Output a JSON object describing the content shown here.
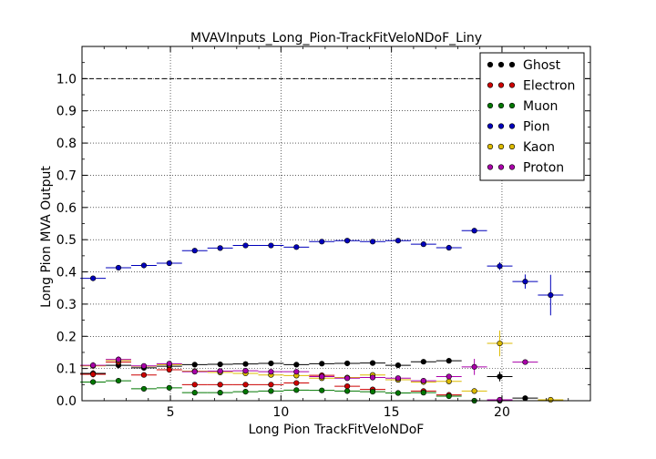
{
  "chart_data": {
    "type": "scatter",
    "title": "MVAVInputs_Long_Pion-TrackFitVeloNDoF_Liny",
    "xlabel": "Long Pion TrackFitVeloNDoF",
    "ylabel": "Long Pion MVA Output",
    "xlim": [
      1,
      24
    ],
    "ylim": [
      0,
      1.1
    ],
    "xticks": [
      5,
      10,
      15,
      20
    ],
    "xtick_labels": [
      "5",
      "10",
      "15",
      "20"
    ],
    "yticks": [
      0.0,
      0.1,
      0.2,
      0.3,
      0.4,
      0.5,
      0.6,
      0.7,
      0.8,
      0.9,
      1.0
    ],
    "ytick_labels": [
      "0.0",
      "0.1",
      "0.2",
      "0.3",
      "0.4",
      "0.5",
      "0.6",
      "0.7",
      "0.8",
      "0.9",
      "1.0"
    ],
    "grid": true,
    "reference_line_y": 1.0,
    "legend_position": "top-right",
    "bin_half_width": 0.575,
    "series": [
      {
        "name": "Ghost",
        "color": "#000000",
        "points": [
          {
            "x": 1.5,
            "y": 0.085,
            "err": 0.01
          },
          {
            "x": 2.65,
            "y": 0.11,
            "err": 0.01
          },
          {
            "x": 3.8,
            "y": 0.102,
            "err": 0.008
          },
          {
            "x": 4.95,
            "y": 0.107,
            "err": 0.006
          },
          {
            "x": 6.1,
            "y": 0.112,
            "err": 0.006
          },
          {
            "x": 7.25,
            "y": 0.113,
            "err": 0.005
          },
          {
            "x": 8.4,
            "y": 0.114,
            "err": 0.005
          },
          {
            "x": 9.55,
            "y": 0.116,
            "err": 0.005
          },
          {
            "x": 10.7,
            "y": 0.112,
            "err": 0.005
          },
          {
            "x": 11.85,
            "y": 0.115,
            "err": 0.005
          },
          {
            "x": 13.0,
            "y": 0.116,
            "err": 0.005
          },
          {
            "x": 14.15,
            "y": 0.117,
            "err": 0.005
          },
          {
            "x": 15.3,
            "y": 0.11,
            "err": 0.005
          },
          {
            "x": 16.45,
            "y": 0.121,
            "err": 0.005
          },
          {
            "x": 17.6,
            "y": 0.124,
            "err": 0.006
          },
          {
            "x": 19.9,
            "y": 0.075,
            "err": 0.015
          },
          {
            "x": 21.05,
            "y": 0.008,
            "err": 0.004
          }
        ]
      },
      {
        "name": "Electron",
        "color": "#cc0000",
        "points": [
          {
            "x": 1.5,
            "y": 0.082,
            "err": 0.01
          },
          {
            "x": 2.65,
            "y": 0.12,
            "err": 0.01
          },
          {
            "x": 3.8,
            "y": 0.08,
            "err": 0.008
          },
          {
            "x": 4.95,
            "y": 0.096,
            "err": 0.008
          },
          {
            "x": 6.1,
            "y": 0.05,
            "err": 0.006
          },
          {
            "x": 7.25,
            "y": 0.05,
            "err": 0.006
          },
          {
            "x": 8.4,
            "y": 0.05,
            "err": 0.006
          },
          {
            "x": 9.55,
            "y": 0.05,
            "err": 0.006
          },
          {
            "x": 10.7,
            "y": 0.055,
            "err": 0.006
          },
          {
            "x": 11.85,
            "y": 0.079,
            "err": 0.006
          },
          {
            "x": 13.0,
            "y": 0.045,
            "err": 0.006
          },
          {
            "x": 14.15,
            "y": 0.035,
            "err": 0.006
          },
          {
            "x": 15.3,
            "y": 0.065,
            "err": 0.006
          },
          {
            "x": 16.45,
            "y": 0.03,
            "err": 0.006
          },
          {
            "x": 17.6,
            "y": 0.018,
            "err": 0.005
          }
        ]
      },
      {
        "name": "Muon",
        "color": "#007700",
        "points": [
          {
            "x": 1.5,
            "y": 0.058,
            "err": 0.006
          },
          {
            "x": 2.65,
            "y": 0.062,
            "err": 0.006
          },
          {
            "x": 3.8,
            "y": 0.037,
            "err": 0.004
          },
          {
            "x": 4.95,
            "y": 0.04,
            "err": 0.004
          },
          {
            "x": 6.1,
            "y": 0.025,
            "err": 0.003
          },
          {
            "x": 7.25,
            "y": 0.025,
            "err": 0.003
          },
          {
            "x": 8.4,
            "y": 0.028,
            "err": 0.003
          },
          {
            "x": 9.55,
            "y": 0.03,
            "err": 0.003
          },
          {
            "x": 10.7,
            "y": 0.033,
            "err": 0.003
          },
          {
            "x": 11.85,
            "y": 0.032,
            "err": 0.003
          },
          {
            "x": 13.0,
            "y": 0.03,
            "err": 0.003
          },
          {
            "x": 14.15,
            "y": 0.028,
            "err": 0.003
          },
          {
            "x": 15.3,
            "y": 0.024,
            "err": 0.003
          },
          {
            "x": 16.45,
            "y": 0.025,
            "err": 0.003
          },
          {
            "x": 17.6,
            "y": 0.014,
            "err": 0.003
          },
          {
            "x": 18.75,
            "y": 0.0,
            "err": 0.002
          },
          {
            "x": 19.9,
            "y": 0.0,
            "err": 0.002
          }
        ]
      },
      {
        "name": "Pion",
        "color": "#0000bb",
        "points": [
          {
            "x": 1.5,
            "y": 0.38,
            "err": 0.006
          },
          {
            "x": 2.65,
            "y": 0.413,
            "err": 0.005
          },
          {
            "x": 3.8,
            "y": 0.42,
            "err": 0.004
          },
          {
            "x": 4.95,
            "y": 0.427,
            "err": 0.004
          },
          {
            "x": 6.1,
            "y": 0.466,
            "err": 0.004
          },
          {
            "x": 7.25,
            "y": 0.474,
            "err": 0.004
          },
          {
            "x": 8.4,
            "y": 0.482,
            "err": 0.003
          },
          {
            "x": 9.55,
            "y": 0.482,
            "err": 0.003
          },
          {
            "x": 10.7,
            "y": 0.477,
            "err": 0.003
          },
          {
            "x": 11.85,
            "y": 0.494,
            "err": 0.003
          },
          {
            "x": 13.0,
            "y": 0.497,
            "err": 0.003
          },
          {
            "x": 14.15,
            "y": 0.494,
            "err": 0.003
          },
          {
            "x": 15.3,
            "y": 0.497,
            "err": 0.003
          },
          {
            "x": 16.45,
            "y": 0.486,
            "err": 0.004
          },
          {
            "x": 17.6,
            "y": 0.475,
            "err": 0.005
          },
          {
            "x": 18.75,
            "y": 0.528,
            "err": 0.006
          },
          {
            "x": 19.9,
            "y": 0.418,
            "err": 0.012
          },
          {
            "x": 21.05,
            "y": 0.37,
            "err": 0.022
          },
          {
            "x": 22.2,
            "y": 0.328,
            "err": 0.063
          }
        ]
      },
      {
        "name": "Kaon",
        "color": "#ddbb00",
        "points": [
          {
            "x": 1.5,
            "y": 0.108,
            "err": 0.01
          },
          {
            "x": 2.65,
            "y": 0.125,
            "err": 0.01
          },
          {
            "x": 3.8,
            "y": 0.107,
            "err": 0.008
          },
          {
            "x": 4.95,
            "y": 0.112,
            "err": 0.006
          },
          {
            "x": 6.1,
            "y": 0.092,
            "err": 0.006
          },
          {
            "x": 7.25,
            "y": 0.088,
            "err": 0.006
          },
          {
            "x": 8.4,
            "y": 0.085,
            "err": 0.006
          },
          {
            "x": 9.55,
            "y": 0.08,
            "err": 0.006
          },
          {
            "x": 10.7,
            "y": 0.078,
            "err": 0.006
          },
          {
            "x": 11.85,
            "y": 0.07,
            "err": 0.006
          },
          {
            "x": 13.0,
            "y": 0.072,
            "err": 0.006
          },
          {
            "x": 14.15,
            "y": 0.08,
            "err": 0.006
          },
          {
            "x": 15.3,
            "y": 0.065,
            "err": 0.006
          },
          {
            "x": 16.45,
            "y": 0.058,
            "err": 0.006
          },
          {
            "x": 17.6,
            "y": 0.06,
            "err": 0.008
          },
          {
            "x": 18.75,
            "y": 0.03,
            "err": 0.006
          },
          {
            "x": 19.9,
            "y": 0.178,
            "err": 0.04
          },
          {
            "x": 22.2,
            "y": 0.003,
            "err": 0.003
          }
        ]
      },
      {
        "name": "Proton",
        "color": "#aa00aa",
        "points": [
          {
            "x": 1.5,
            "y": 0.11,
            "err": 0.01
          },
          {
            "x": 2.65,
            "y": 0.128,
            "err": 0.01
          },
          {
            "x": 3.8,
            "y": 0.108,
            "err": 0.008
          },
          {
            "x": 4.95,
            "y": 0.115,
            "err": 0.006
          },
          {
            "x": 6.1,
            "y": 0.09,
            "err": 0.006
          },
          {
            "x": 7.25,
            "y": 0.092,
            "err": 0.006
          },
          {
            "x": 8.4,
            "y": 0.093,
            "err": 0.006
          },
          {
            "x": 9.55,
            "y": 0.09,
            "err": 0.006
          },
          {
            "x": 10.7,
            "y": 0.09,
            "err": 0.006
          },
          {
            "x": 11.85,
            "y": 0.075,
            "err": 0.006
          },
          {
            "x": 13.0,
            "y": 0.07,
            "err": 0.006
          },
          {
            "x": 14.15,
            "y": 0.072,
            "err": 0.006
          },
          {
            "x": 15.3,
            "y": 0.07,
            "err": 0.006
          },
          {
            "x": 16.45,
            "y": 0.062,
            "err": 0.006
          },
          {
            "x": 17.6,
            "y": 0.075,
            "err": 0.008
          },
          {
            "x": 18.75,
            "y": 0.105,
            "err": 0.025
          },
          {
            "x": 19.9,
            "y": 0.003,
            "err": 0.003
          },
          {
            "x": 21.05,
            "y": 0.12,
            "err": 0.006
          }
        ]
      }
    ]
  }
}
